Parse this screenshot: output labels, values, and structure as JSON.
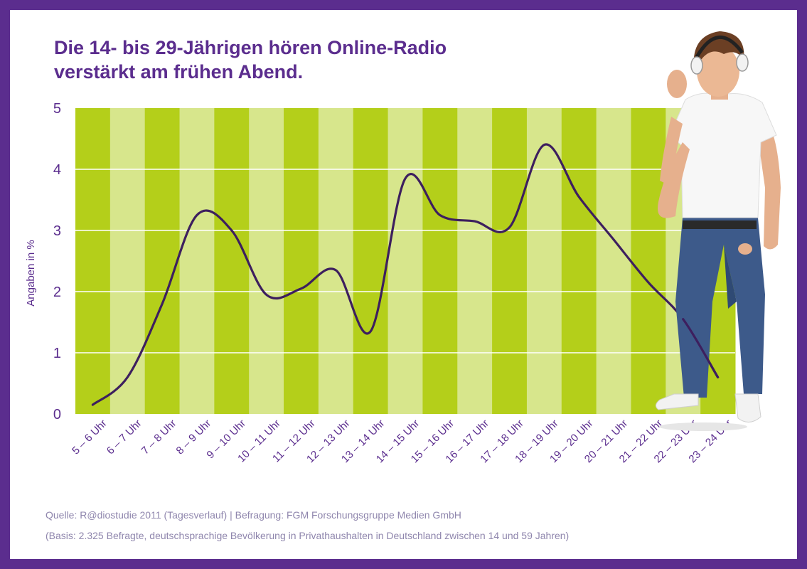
{
  "title": {
    "line1": "Die 14- bis 29-Jährigen hören Online-Radio",
    "line2": "verstärkt am frühen Abend."
  },
  "source": {
    "line1": "Quelle: R@diostudie 2011 (Tagesverlauf) | Befragung: FGM Forschungsgruppe Medien GmbH",
    "line2": "(Basis: 2.325 Befragte, deutschsprachige Bevölkerung in Privathaushalten in Deutschland zwischen 14 und 59 Jahren)"
  },
  "colors": {
    "frame": "#5b2d8e",
    "line": "#3d1f5e",
    "stripe_dark": "#b4cf1a",
    "stripe_light": "#d7e68c",
    "gridline": "#ffffff",
    "text": "#5b2d8e"
  },
  "image": {
    "person": "teenager-with-headphones"
  },
  "chart_data": {
    "type": "line",
    "title": "Die 14- bis 29-Jährigen hören Online-Radio verstärkt am frühen Abend.",
    "ylabel": "Angaben in %",
    "xlabel": "",
    "ylim": [
      0,
      5
    ],
    "yticks": [
      "0",
      "1",
      "2",
      "3",
      "4",
      "5"
    ],
    "grid": true,
    "background": "alternating vertical stripes",
    "curve": "smooth",
    "categories": [
      "5 – 6 Uhr",
      "6 – 7 Uhr",
      "7 – 8 Uhr",
      "8 – 9 Uhr",
      "9 – 10 Uhr",
      "10 – 11 Uhr",
      "11 – 12 Uhr",
      "12 – 13 Uhr",
      "13 – 14 Uhr",
      "14 – 15 Uhr",
      "15 – 16 Uhr",
      "16 – 17 Uhr",
      "17 – 18 Uhr",
      "18 – 19 Uhr",
      "19 – 20 Uhr",
      "20 – 21 Uhr",
      "21 – 22 Uhr",
      "22 – 23 Uhr",
      "23 – 24 Uhr"
    ],
    "values": [
      0.15,
      0.6,
      1.8,
      3.25,
      3.0,
      1.95,
      2.05,
      2.35,
      1.35,
      3.85,
      3.25,
      3.15,
      3.05,
      4.4,
      3.55,
      2.85,
      2.15,
      1.55,
      0.6
    ]
  }
}
